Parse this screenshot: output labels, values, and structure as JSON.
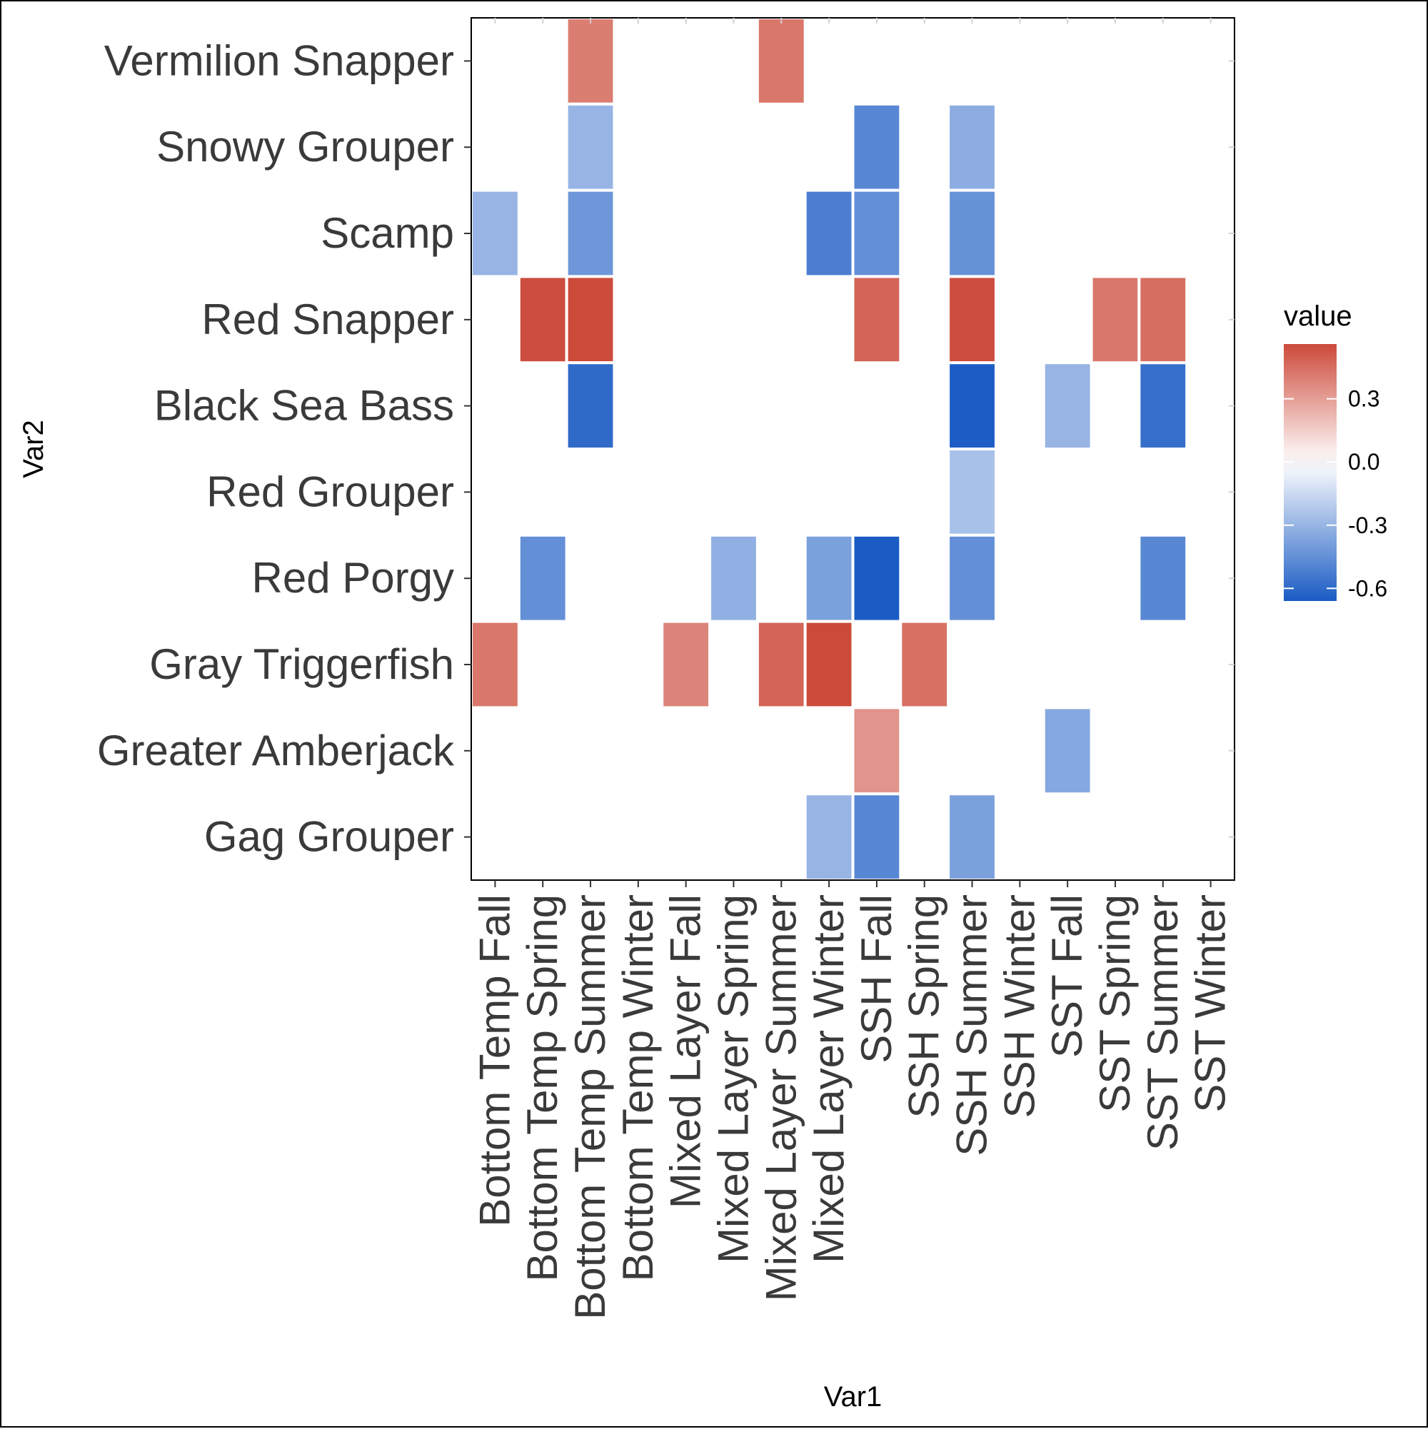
{
  "chart_data": {
    "type": "heatmap",
    "xlabel": "Var1",
    "ylabel": "Var2",
    "x_categories": [
      "Bottom Temp Fall",
      "Bottom Temp Spring",
      "Bottom Temp Summer",
      "Bottom Temp Winter",
      "Mixed Layer Fall",
      "Mixed Layer Spring",
      "Mixed Layer Summer",
      "Mixed Layer Winter",
      "SSH Fall",
      "SSH Spring",
      "SSH Summer",
      "SSH Winter",
      "SST Fall",
      "SST Spring",
      "SST Summer",
      "SST Winter"
    ],
    "y_categories": [
      "Gag Grouper",
      "Greater Amberjack",
      "Gray Triggerfish",
      "Red Porgy",
      "Red Grouper",
      "Black Sea Bass",
      "Red Snapper",
      "Scamp",
      "Snowy Grouper",
      "Vermilion Snapper"
    ],
    "cells": [
      {
        "x": "Bottom Temp Summer",
        "y": "Vermilion Snapper",
        "value": 0.4
      },
      {
        "x": "Mixed Layer Summer",
        "y": "Vermilion Snapper",
        "value": 0.42
      },
      {
        "x": "Bottom Temp Summer",
        "y": "Snowy Grouper",
        "value": -0.3
      },
      {
        "x": "SSH Fall",
        "y": "Snowy Grouper",
        "value": -0.48
      },
      {
        "x": "SSH Summer",
        "y": "Snowy Grouper",
        "value": -0.33
      },
      {
        "x": "Bottom Temp Fall",
        "y": "Scamp",
        "value": -0.3
      },
      {
        "x": "Bottom Temp Summer",
        "y": "Scamp",
        "value": -0.42
      },
      {
        "x": "Mixed Layer Winter",
        "y": "Scamp",
        "value": -0.52
      },
      {
        "x": "SSH Fall",
        "y": "Scamp",
        "value": -0.45
      },
      {
        "x": "SSH Summer",
        "y": "Scamp",
        "value": -0.44
      },
      {
        "x": "Bottom Temp Spring",
        "y": "Red Snapper",
        "value": 0.55
      },
      {
        "x": "Bottom Temp Summer",
        "y": "Red Snapper",
        "value": 0.58
      },
      {
        "x": "SSH Fall",
        "y": "Red Snapper",
        "value": 0.48
      },
      {
        "x": "SSH Summer",
        "y": "Red Snapper",
        "value": 0.55
      },
      {
        "x": "SST Spring",
        "y": "Red Snapper",
        "value": 0.42
      },
      {
        "x": "SST Summer",
        "y": "Red Snapper",
        "value": 0.45
      },
      {
        "x": "Bottom Temp Summer",
        "y": "Black Sea Bass",
        "value": -0.6
      },
      {
        "x": "SSH Summer",
        "y": "Black Sea Bass",
        "value": -0.65
      },
      {
        "x": "SST Fall",
        "y": "Black Sea Bass",
        "value": -0.3
      },
      {
        "x": "SST Summer",
        "y": "Black Sea Bass",
        "value": -0.58
      },
      {
        "x": "SSH Summer",
        "y": "Red Grouper",
        "value": -0.25
      },
      {
        "x": "Bottom Temp Spring",
        "y": "Red Porgy",
        "value": -0.45
      },
      {
        "x": "Mixed Layer Spring",
        "y": "Red Porgy",
        "value": -0.32
      },
      {
        "x": "Mixed Layer Winter",
        "y": "Red Porgy",
        "value": -0.38
      },
      {
        "x": "SSH Fall",
        "y": "Red Porgy",
        "value": -0.7
      },
      {
        "x": "SSH Summer",
        "y": "Red Porgy",
        "value": -0.45
      },
      {
        "x": "SST Summer",
        "y": "Red Porgy",
        "value": -0.48
      },
      {
        "x": "Bottom Temp Fall",
        "y": "Gray Triggerfish",
        "value": 0.42
      },
      {
        "x": "Mixed Layer Fall",
        "y": "Gray Triggerfish",
        "value": 0.38
      },
      {
        "x": "Mixed Layer Summer",
        "y": "Gray Triggerfish",
        "value": 0.48
      },
      {
        "x": "Mixed Layer Winter",
        "y": "Gray Triggerfish",
        "value": 0.58
      },
      {
        "x": "SSH Spring",
        "y": "Gray Triggerfish",
        "value": 0.44
      },
      {
        "x": "SSH Fall",
        "y": "Greater Amberjack",
        "value": 0.33
      },
      {
        "x": "SST Fall",
        "y": "Greater Amberjack",
        "value": -0.35
      },
      {
        "x": "Mixed Layer Winter",
        "y": "Gag Grouper",
        "value": -0.3
      },
      {
        "x": "SSH Fall",
        "y": "Gag Grouper",
        "value": -0.48
      },
      {
        "x": "SSH Summer",
        "y": "Gag Grouper",
        "value": -0.38
      }
    ],
    "colorbar": {
      "title": "value",
      "ticks": [
        0.3,
        0.0,
        -0.3,
        -0.6
      ],
      "tick_labels": [
        "0.3",
        "0.0",
        "-0.3",
        "-0.6"
      ],
      "range": [
        -0.66,
        0.56
      ],
      "low_color": "#1a5bc4",
      "mid_color": "#ffffff",
      "high_color": "#cc4a3a"
    },
    "grid": false,
    "legend_position": "right"
  }
}
